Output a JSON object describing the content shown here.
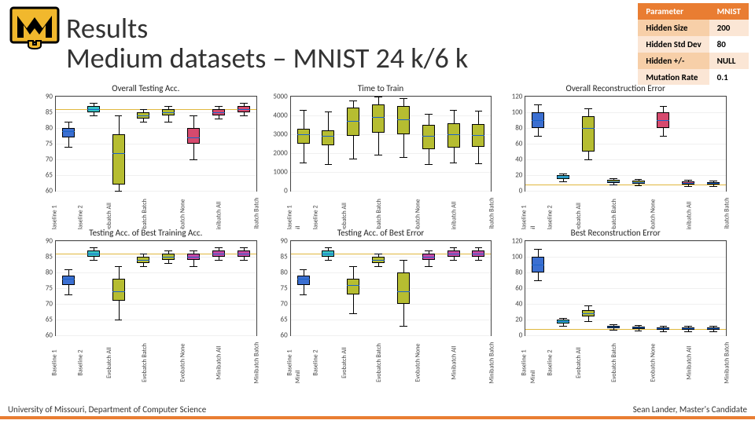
{
  "title_line1": "Results",
  "title_line2": "Medium datasets – MNIST 24 k/6 k",
  "logo": {
    "gold": "#f1b82d",
    "black": "#000000"
  },
  "param_table": {
    "headers": [
      "Parameter",
      "MNIST"
    ],
    "rows": [
      [
        "Hidden Size",
        "200"
      ],
      [
        "Hidden Std Dev",
        "80"
      ],
      [
        "Hidden +/-",
        "NULL"
      ],
      [
        "Mutation Rate",
        "0.1"
      ]
    ],
    "header_bg": "#e97d32"
  },
  "categories": [
    "Baseline 1",
    "Baseline 2",
    "Evobatch All",
    "Evobatch Batch",
    "Evobatch None",
    "Minibatch All",
    "Minibatch Batch",
    "Minibatch None"
  ],
  "box_colors": {
    "blue": "#3b6fd1",
    "cyan": "#36c2c4",
    "olive": "#b6bd31",
    "red": "#d64a6e",
    "magenta": "#c74aa6"
  },
  "median_color": "#1a63c8",
  "ref_line_color": "#e0b83e",
  "charts": [
    {
      "id": "overall-testing-acc",
      "title": "Overall Testing Acc.",
      "ylim": [
        60,
        90
      ],
      "ytick_step": 5,
      "ref_line": 86,
      "boxes": [
        {
          "q1": 77,
          "q3": 80,
          "med": 79,
          "lo": 74,
          "hi": 82,
          "fill": "blue"
        },
        {
          "q1": 85,
          "q3": 87,
          "med": 86,
          "lo": 84,
          "hi": 88,
          "fill": "cyan"
        },
        {
          "q1": 62,
          "q3": 78,
          "med": 72,
          "lo": 60,
          "hi": 84,
          "fill": "olive"
        },
        {
          "q1": 83,
          "q3": 85,
          "med": 84,
          "lo": 82,
          "hi": 86,
          "fill": "olive"
        },
        {
          "q1": 84,
          "q3": 86,
          "med": 85,
          "lo": 82,
          "hi": 87,
          "fill": "olive"
        },
        {
          "q1": 75,
          "q3": 80,
          "med": 77,
          "lo": 70,
          "hi": 84,
          "fill": "red"
        },
        {
          "q1": 84,
          "q3": 86,
          "med": 85,
          "lo": 83,
          "hi": 87,
          "fill": "red"
        },
        {
          "q1": 85,
          "q3": 87,
          "med": 86,
          "lo": 84,
          "hi": 88,
          "fill": "red"
        }
      ]
    },
    {
      "id": "time-to-train",
      "title": "Time to Train",
      "ylim": [
        0,
        5000
      ],
      "ytick_step": 1000,
      "boxes": [
        {
          "q1": 2500,
          "q3": 3300,
          "med": 3000,
          "lo": 1500,
          "hi": 4300,
          "fill": "olive"
        },
        {
          "q1": 2400,
          "q3": 3200,
          "med": 2900,
          "lo": 1400,
          "hi": 4200,
          "fill": "olive"
        },
        {
          "q1": 2900,
          "q3": 4400,
          "med": 3700,
          "lo": 1700,
          "hi": 4800,
          "fill": "olive"
        },
        {
          "q1": 3100,
          "q3": 4600,
          "med": 3900,
          "lo": 1900,
          "hi": 5000,
          "fill": "olive"
        },
        {
          "q1": 3000,
          "q3": 4500,
          "med": 3800,
          "lo": 1800,
          "hi": 4900,
          "fill": "olive"
        },
        {
          "q1": 2200,
          "q3": 3500,
          "med": 2900,
          "lo": 1400,
          "hi": 4100,
          "fill": "olive"
        },
        {
          "q1": 2300,
          "q3": 3600,
          "med": 3000,
          "lo": 1500,
          "hi": 4300,
          "fill": "olive"
        },
        {
          "q1": 2350,
          "q3": 3550,
          "med": 2950,
          "lo": 1450,
          "hi": 4250,
          "fill": "olive"
        }
      ]
    },
    {
      "id": "overall-recon-error",
      "title": "Overall Reconstruction Error",
      "ylim": [
        0,
        120
      ],
      "ytick_step": 20,
      "ref_line": 8,
      "boxes": [
        {
          "q1": 80,
          "q3": 100,
          "med": 90,
          "lo": 70,
          "hi": 110,
          "fill": "blue"
        },
        {
          "q1": 15,
          "q3": 20,
          "med": 18,
          "lo": 12,
          "hi": 22,
          "fill": "cyan"
        },
        {
          "q1": 50,
          "q3": 95,
          "med": 80,
          "lo": 40,
          "hi": 105,
          "fill": "olive"
        },
        {
          "q1": 10,
          "q3": 14,
          "med": 12,
          "lo": 8,
          "hi": 16,
          "fill": "olive"
        },
        {
          "q1": 9,
          "q3": 13,
          "med": 11,
          "lo": 7,
          "hi": 15,
          "fill": "olive"
        },
        {
          "q1": 80,
          "q3": 100,
          "med": 90,
          "lo": 70,
          "hi": 108,
          "fill": "red"
        },
        {
          "q1": 8,
          "q3": 12,
          "med": 10,
          "lo": 6,
          "hi": 14,
          "fill": "red"
        },
        {
          "q1": 8,
          "q3": 11,
          "med": 10,
          "lo": 6,
          "hi": 13,
          "fill": "red"
        }
      ]
    },
    {
      "id": "testing-acc-best-train",
      "title": "Testing Acc. of Best Training Acc.",
      "ylim": [
        60,
        90
      ],
      "ytick_step": 5,
      "ref_line": 86,
      "boxes": [
        {
          "q1": 76,
          "q3": 79,
          "med": 78,
          "lo": 73,
          "hi": 81,
          "fill": "blue"
        },
        {
          "q1": 85,
          "q3": 87,
          "med": 86,
          "lo": 84,
          "hi": 88,
          "fill": "cyan"
        },
        {
          "q1": 71,
          "q3": 78,
          "med": 74,
          "lo": 65,
          "hi": 82,
          "fill": "olive"
        },
        {
          "q1": 83,
          "q3": 85,
          "med": 84,
          "lo": 82,
          "hi": 86,
          "fill": "olive"
        },
        {
          "q1": 84,
          "q3": 86,
          "med": 85,
          "lo": 83,
          "hi": 87,
          "fill": "olive"
        },
        {
          "q1": 84,
          "q3": 86,
          "med": 85,
          "lo": 82,
          "hi": 87,
          "fill": "magenta"
        },
        {
          "q1": 85,
          "q3": 87,
          "med": 86,
          "lo": 84,
          "hi": 88,
          "fill": "magenta"
        },
        {
          "q1": 85,
          "q3": 87,
          "med": 86,
          "lo": 84,
          "hi": 88,
          "fill": "magenta"
        }
      ]
    },
    {
      "id": "testing-acc-best-error",
      "title": "Testing Acc. of Best Error",
      "ylim": [
        60,
        90
      ],
      "ytick_step": 5,
      "ref_line": 86,
      "boxes": [
        {
          "q1": 76,
          "q3": 79,
          "med": 78,
          "lo": 73,
          "hi": 81,
          "fill": "blue"
        },
        {
          "q1": 85,
          "q3": 87,
          "med": 86,
          "lo": 84,
          "hi": 88,
          "fill": "cyan"
        },
        {
          "q1": 73,
          "q3": 78,
          "med": 76,
          "lo": 67,
          "hi": 82,
          "fill": "olive"
        },
        {
          "q1": 83,
          "q3": 85,
          "med": 84,
          "lo": 82,
          "hi": 86,
          "fill": "olive"
        },
        {
          "q1": 70,
          "q3": 80,
          "med": 74,
          "lo": 63,
          "hi": 84,
          "fill": "olive"
        },
        {
          "q1": 84,
          "q3": 86,
          "med": 85,
          "lo": 82,
          "hi": 87,
          "fill": "magenta"
        },
        {
          "q1": 85,
          "q3": 87,
          "med": 86,
          "lo": 84,
          "hi": 88,
          "fill": "magenta"
        },
        {
          "q1": 85,
          "q3": 87,
          "med": 86,
          "lo": 84,
          "hi": 88,
          "fill": "magenta"
        }
      ]
    },
    {
      "id": "best-recon-error",
      "title": "Best Reconstruction Error",
      "ylim": [
        0,
        120
      ],
      "ytick_step": 20,
      "ref_line": 8,
      "boxes": [
        {
          "q1": 80,
          "q3": 100,
          "med": 90,
          "lo": 70,
          "hi": 110,
          "fill": "blue"
        },
        {
          "q1": 15,
          "q3": 20,
          "med": 18,
          "lo": 12,
          "hi": 22,
          "fill": "cyan"
        },
        {
          "q1": 24,
          "q3": 32,
          "med": 28,
          "lo": 18,
          "hi": 38,
          "fill": "olive"
        },
        {
          "q1": 9,
          "q3": 12,
          "med": 11,
          "lo": 7,
          "hi": 14,
          "fill": "olive"
        },
        {
          "q1": 8,
          "q3": 11,
          "med": 10,
          "lo": 6,
          "hi": 13,
          "fill": "olive"
        },
        {
          "q1": 7,
          "q3": 10,
          "med": 9,
          "lo": 5,
          "hi": 12,
          "fill": "magenta"
        },
        {
          "q1": 7,
          "q3": 10,
          "med": 9,
          "lo": 5,
          "hi": 12,
          "fill": "magenta"
        },
        {
          "q1": 7,
          "q3": 10,
          "med": 9,
          "lo": 5,
          "hi": 12,
          "fill": "magenta"
        }
      ]
    }
  ],
  "footer_left": "University of Missouri, Department of Computer Science",
  "footer_right": "Sean Lander, Master's Candidate",
  "footer_bar_color": "#e97d32"
}
